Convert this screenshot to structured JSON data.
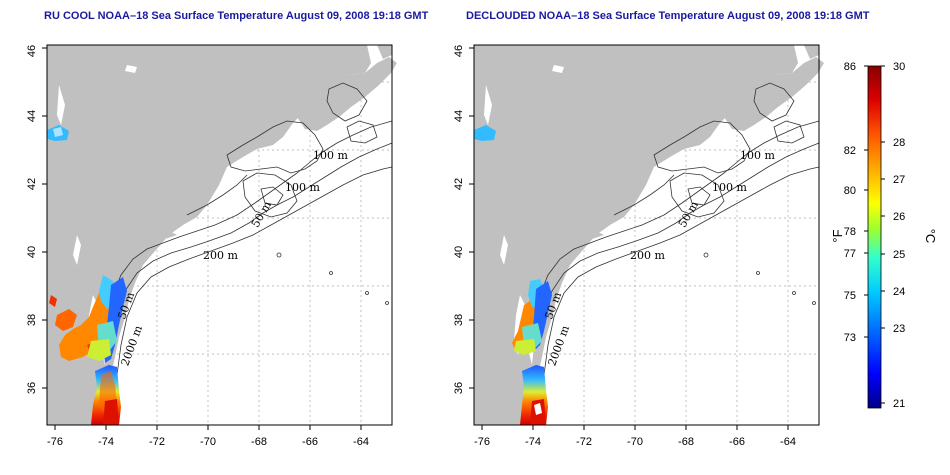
{
  "panels": [
    {
      "id": "left",
      "title": "RU COOL NOAA–18 Sea Surface Temperature August 09, 2008 19:18 GMT",
      "x_ticks": [
        "-76",
        "-74",
        "-72",
        "-70",
        "-68",
        "-66",
        "-64"
      ],
      "y_ticks": [
        "36",
        "38",
        "40",
        "42",
        "44",
        "46"
      ],
      "contour_labels": [
        "100 m",
        "100 m",
        "50 m",
        "200 m",
        "50 m",
        "2000 m"
      ]
    },
    {
      "id": "right",
      "title": "DECLOUDED NOAA–18 Sea Surface Temperature August 09, 2008 19:18 GMT",
      "x_ticks": [
        "-76",
        "-74",
        "-72",
        "-70",
        "-68",
        "-66",
        "-64"
      ],
      "y_ticks": [
        "36",
        "38",
        "40",
        "42",
        "44",
        "46"
      ],
      "contour_labels": [
        "100 m",
        "100 m",
        "50 m",
        "200 m",
        "50 m",
        "2000 m"
      ]
    }
  ],
  "colorbar": {
    "fahrenheit_ticks": [
      "86",
      "82",
      "80",
      "78",
      "77",
      "75",
      "73"
    ],
    "celsius_ticks": [
      "30",
      "28",
      "27",
      "26",
      "25",
      "24",
      "23",
      "21"
    ],
    "fahrenheit_label": "°F",
    "celsius_label": "°C",
    "colors": [
      "#000088",
      "#0000ff",
      "#0066ff",
      "#00ccff",
      "#33ffcc",
      "#99ff33",
      "#ffff00",
      "#ffaa00",
      "#ff5500",
      "#dd0000",
      "#880000"
    ]
  },
  "colors": {
    "land": "#c0c0c0",
    "ocean": "#ffffff",
    "title": "#1a1aa0"
  }
}
